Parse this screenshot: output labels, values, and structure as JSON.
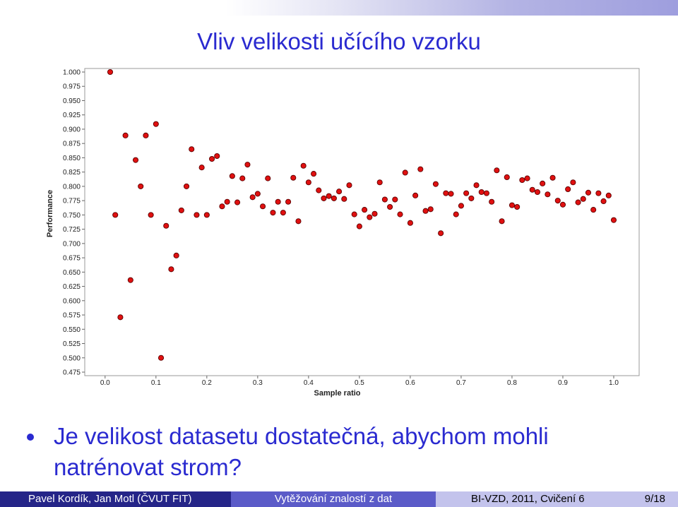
{
  "slide": {
    "title": "Vliv velikosti učícího vzorku",
    "bullet": "Je velikost datasetu dostatečná, abychom mohli natrénovat strom?",
    "footer": {
      "authors": "Pavel Kordík, Jan Motl (ČVUT FIT)",
      "topic": "Vytěžování znalostí z dat",
      "course": "BI-VZD, 2011, Cvičení 6",
      "page": "9/18"
    }
  },
  "colors": {
    "title": "#2a2ad0",
    "point_fill": "#e01010",
    "footer_dark": "#252588",
    "footer_mid": "#5b5bc8",
    "footer_light": "#c3c3ec"
  },
  "chart_data": {
    "type": "scatter",
    "xlabel": "Sample ratio",
    "ylabel": "Performance",
    "xlim": [
      -0.04,
      1.05
    ],
    "ylim": [
      0.475,
      1.0
    ],
    "xticks": [
      "0.0",
      "0.1",
      "0.2",
      "0.3",
      "0.4",
      "0.5",
      "0.6",
      "0.7",
      "0.8",
      "0.9",
      "1.0"
    ],
    "yticks": [
      "0.475",
      "0.500",
      "0.525",
      "0.550",
      "0.575",
      "0.600",
      "0.625",
      "0.650",
      "0.675",
      "0.700",
      "0.725",
      "0.750",
      "0.775",
      "0.800",
      "0.825",
      "0.850",
      "0.875",
      "0.900",
      "0.925",
      "0.950",
      "0.975",
      "1.000"
    ],
    "grid": false,
    "points": [
      [
        0.01,
        1.0
      ],
      [
        0.02,
        0.75
      ],
      [
        0.03,
        0.571
      ],
      [
        0.04,
        0.889
      ],
      [
        0.05,
        0.636
      ],
      [
        0.06,
        0.846
      ],
      [
        0.07,
        0.8
      ],
      [
        0.08,
        0.889
      ],
      [
        0.09,
        0.75
      ],
      [
        0.1,
        0.909
      ],
      [
        0.11,
        0.5
      ],
      [
        0.12,
        0.731
      ],
      [
        0.13,
        0.655
      ],
      [
        0.14,
        0.679
      ],
      [
        0.15,
        0.758
      ],
      [
        0.16,
        0.8
      ],
      [
        0.17,
        0.865
      ],
      [
        0.18,
        0.75
      ],
      [
        0.19,
        0.833
      ],
      [
        0.2,
        0.75
      ],
      [
        0.21,
        0.848
      ],
      [
        0.22,
        0.853
      ],
      [
        0.23,
        0.765
      ],
      [
        0.24,
        0.773
      ],
      [
        0.25,
        0.818
      ],
      [
        0.26,
        0.772
      ],
      [
        0.27,
        0.814
      ],
      [
        0.28,
        0.838
      ],
      [
        0.29,
        0.781
      ],
      [
        0.3,
        0.787
      ],
      [
        0.31,
        0.765
      ],
      [
        0.32,
        0.814
      ],
      [
        0.33,
        0.754
      ],
      [
        0.34,
        0.773
      ],
      [
        0.35,
        0.754
      ],
      [
        0.36,
        0.773
      ],
      [
        0.37,
        0.815
      ],
      [
        0.38,
        0.739
      ],
      [
        0.39,
        0.836
      ],
      [
        0.4,
        0.807
      ],
      [
        0.41,
        0.822
      ],
      [
        0.42,
        0.793
      ],
      [
        0.43,
        0.779
      ],
      [
        0.44,
        0.783
      ],
      [
        0.45,
        0.779
      ],
      [
        0.46,
        0.791
      ],
      [
        0.47,
        0.778
      ],
      [
        0.48,
        0.802
      ],
      [
        0.49,
        0.751
      ],
      [
        0.5,
        0.73
      ],
      [
        0.51,
        0.759
      ],
      [
        0.52,
        0.746
      ],
      [
        0.53,
        0.752
      ],
      [
        0.54,
        0.807
      ],
      [
        0.55,
        0.777
      ],
      [
        0.56,
        0.764
      ],
      [
        0.57,
        0.777
      ],
      [
        0.58,
        0.751
      ],
      [
        0.59,
        0.824
      ],
      [
        0.6,
        0.736
      ],
      [
        0.61,
        0.784
      ],
      [
        0.62,
        0.83
      ],
      [
        0.63,
        0.757
      ],
      [
        0.64,
        0.76
      ],
      [
        0.65,
        0.804
      ],
      [
        0.66,
        0.718
      ],
      [
        0.67,
        0.788
      ],
      [
        0.68,
        0.787
      ],
      [
        0.69,
        0.751
      ],
      [
        0.7,
        0.766
      ],
      [
        0.71,
        0.788
      ],
      [
        0.72,
        0.779
      ],
      [
        0.73,
        0.802
      ],
      [
        0.74,
        0.79
      ],
      [
        0.75,
        0.788
      ],
      [
        0.76,
        0.773
      ],
      [
        0.77,
        0.828
      ],
      [
        0.78,
        0.739
      ],
      [
        0.79,
        0.816
      ],
      [
        0.8,
        0.767
      ],
      [
        0.81,
        0.764
      ],
      [
        0.82,
        0.811
      ],
      [
        0.83,
        0.814
      ],
      [
        0.84,
        0.794
      ],
      [
        0.85,
        0.79
      ],
      [
        0.86,
        0.805
      ],
      [
        0.87,
        0.786
      ],
      [
        0.88,
        0.815
      ],
      [
        0.89,
        0.775
      ],
      [
        0.9,
        0.768
      ],
      [
        0.91,
        0.795
      ],
      [
        0.92,
        0.807
      ],
      [
        0.93,
        0.772
      ],
      [
        0.94,
        0.778
      ],
      [
        0.95,
        0.789
      ],
      [
        0.96,
        0.759
      ],
      [
        0.97,
        0.788
      ],
      [
        0.98,
        0.774
      ],
      [
        0.99,
        0.784
      ],
      [
        1.0,
        0.741
      ]
    ]
  }
}
